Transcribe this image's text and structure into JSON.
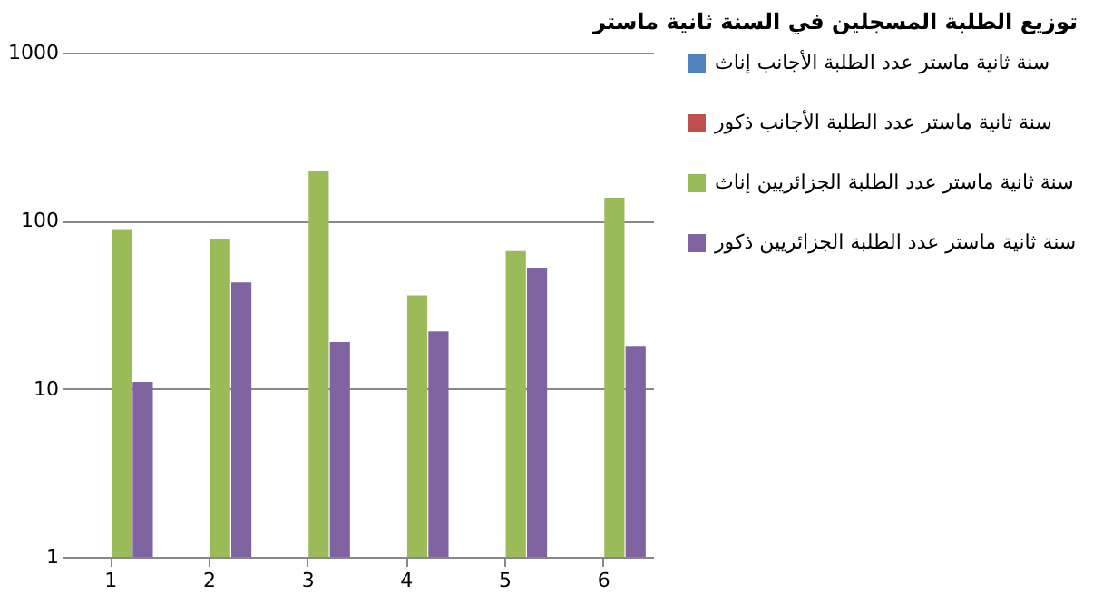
{
  "chart_data": {
    "type": "bar",
    "title": "توزيع الطلبة المسجلين في السنة ثانية ماستر",
    "categories": [
      "1",
      "2",
      "3",
      "4",
      "5",
      "6"
    ],
    "series": [
      {
        "name": "سنة ثانية ماستر عدد الطلبة الأجانب إناث",
        "color": "#4f81bd",
        "values": [
          null,
          null,
          null,
          null,
          null,
          null
        ]
      },
      {
        "name": "سنة ثانية ماستر عدد الطلبة الأجانب ذكور",
        "color": "#c0504d",
        "values": [
          null,
          null,
          null,
          null,
          null,
          null
        ]
      },
      {
        "name": "سنة ثانية ماستر عدد الطلبة الجزائريين إناث",
        "color": "#9bbb59",
        "values": [
          88,
          78,
          199,
          36,
          66,
          137
        ]
      },
      {
        "name": "سنة ثانية ماستر عدد الطلبة الجزائريين ذكور",
        "color": "#8064a2",
        "values": [
          11,
          43,
          19,
          22,
          52,
          18
        ]
      }
    ],
    "log": "y",
    "ylim": [
      1,
      1000
    ],
    "yticks": [
      1,
      10,
      100,
      1000
    ],
    "grid": "y",
    "legend": "right"
  }
}
